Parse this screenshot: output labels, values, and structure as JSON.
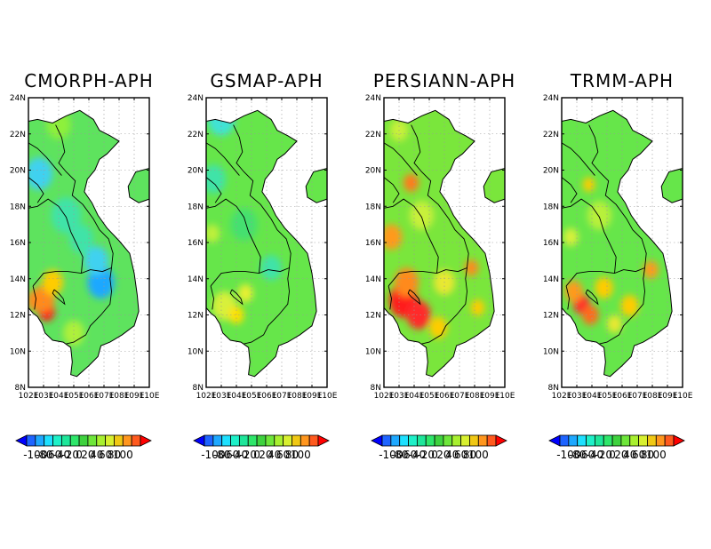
{
  "figure": {
    "panels": [
      {
        "title": "CMORPH-APH",
        "base_color": "#5ee35e",
        "patches": [
          {
            "lon": 103.2,
            "lat": 12.2,
            "r": 0.55,
            "color": "#ff1a1a"
          },
          {
            "lon": 103.0,
            "lat": 12.9,
            "r": 0.75,
            "color": "#ff8a1a"
          },
          {
            "lon": 103.6,
            "lat": 13.8,
            "r": 0.7,
            "color": "#ffcc00"
          },
          {
            "lon": 102.5,
            "lat": 12.8,
            "r": 0.6,
            "color": "#ff8a1a"
          },
          {
            "lon": 106.8,
            "lat": 13.8,
            "r": 0.9,
            "color": "#1ea8ff"
          },
          {
            "lon": 106.5,
            "lat": 15.0,
            "r": 0.8,
            "color": "#3fd1f0"
          },
          {
            "lon": 102.7,
            "lat": 19.8,
            "r": 0.9,
            "color": "#3fd1f0"
          },
          {
            "lon": 104.5,
            "lat": 17.5,
            "r": 1.0,
            "color": "#3fe3a8"
          },
          {
            "lon": 105.5,
            "lat": 16.2,
            "r": 0.8,
            "color": "#3fe3a8"
          },
          {
            "lon": 105.0,
            "lat": 11.0,
            "r": 0.7,
            "color": "#aef03a"
          },
          {
            "lon": 104.0,
            "lat": 22.5,
            "r": 0.8,
            "color": "#8ef03a"
          }
        ]
      },
      {
        "title": "GSMAP-APH",
        "base_color": "#66e64a",
        "patches": [
          {
            "lon": 103.0,
            "lat": 22.8,
            "r": 0.9,
            "color": "#3fe3d5"
          },
          {
            "lon": 102.5,
            "lat": 19.5,
            "r": 0.8,
            "color": "#3fe3a8"
          },
          {
            "lon": 103.2,
            "lat": 12.5,
            "r": 0.8,
            "color": "#d8f03a"
          },
          {
            "lon": 104.0,
            "lat": 12.0,
            "r": 0.5,
            "color": "#ffe000"
          },
          {
            "lon": 104.6,
            "lat": 13.2,
            "r": 0.5,
            "color": "#e8f030"
          },
          {
            "lon": 106.3,
            "lat": 14.6,
            "r": 0.7,
            "color": "#3fe3a8"
          },
          {
            "lon": 104.5,
            "lat": 17.0,
            "r": 0.9,
            "color": "#45e070"
          },
          {
            "lon": 102.4,
            "lat": 16.5,
            "r": 0.5,
            "color": "#c0f03a"
          }
        ]
      },
      {
        "title": "PERSIANN-APH",
        "base_color": "#7ae63c",
        "patches": [
          {
            "lon": 103.3,
            "lat": 12.8,
            "r": 0.95,
            "color": "#ff1a1a"
          },
          {
            "lon": 104.3,
            "lat": 12.0,
            "r": 0.8,
            "color": "#ff2a2a"
          },
          {
            "lon": 103.5,
            "lat": 13.8,
            "r": 0.8,
            "color": "#ff8a1a"
          },
          {
            "lon": 102.5,
            "lat": 16.3,
            "r": 0.7,
            "color": "#ff9a1a"
          },
          {
            "lon": 103.8,
            "lat": 19.3,
            "r": 0.5,
            "color": "#ff7a1a"
          },
          {
            "lon": 107.8,
            "lat": 14.6,
            "r": 0.45,
            "color": "#ff8a1a"
          },
          {
            "lon": 108.2,
            "lat": 12.4,
            "r": 0.45,
            "color": "#ffcc00"
          },
          {
            "lon": 105.6,
            "lat": 11.3,
            "r": 0.6,
            "color": "#ffcc00"
          },
          {
            "lon": 104.5,
            "lat": 17.5,
            "r": 0.8,
            "color": "#c8f03a"
          },
          {
            "lon": 106.0,
            "lat": 13.8,
            "r": 0.7,
            "color": "#e8e830"
          },
          {
            "lon": 103.0,
            "lat": 22.2,
            "r": 0.6,
            "color": "#c8f03a"
          }
        ]
      },
      {
        "title": "TRMM-APH",
        "base_color": "#66e64a",
        "patches": [
          {
            "lon": 103.3,
            "lat": 12.6,
            "r": 0.55,
            "color": "#ff2a2a"
          },
          {
            "lon": 102.8,
            "lat": 13.3,
            "r": 0.6,
            "color": "#ff9a1a"
          },
          {
            "lon": 103.9,
            "lat": 12.0,
            "r": 0.55,
            "color": "#ff6a1a"
          },
          {
            "lon": 104.8,
            "lat": 13.5,
            "r": 0.6,
            "color": "#ffcc00"
          },
          {
            "lon": 107.9,
            "lat": 14.5,
            "r": 0.5,
            "color": "#ff9a1a"
          },
          {
            "lon": 106.5,
            "lat": 12.5,
            "r": 0.6,
            "color": "#ffcc00"
          },
          {
            "lon": 103.8,
            "lat": 19.2,
            "r": 0.4,
            "color": "#ffcc00"
          },
          {
            "lon": 104.5,
            "lat": 17.5,
            "r": 0.8,
            "color": "#b8f03a"
          },
          {
            "lon": 102.6,
            "lat": 16.3,
            "r": 0.5,
            "color": "#d8f03a"
          },
          {
            "lon": 105.5,
            "lat": 11.5,
            "r": 0.5,
            "color": "#e8e830"
          }
        ]
      }
    ],
    "lat_ticks": [
      "8N",
      "10N",
      "12N",
      "14N",
      "16N",
      "18N",
      "20N",
      "22N",
      "24N"
    ],
    "lon_ticks": [
      "102E",
      "103E",
      "104E",
      "105E",
      "106E",
      "107E",
      "108E",
      "109E",
      "110E"
    ],
    "lat_range": [
      8,
      24
    ],
    "lon_range": [
      102,
      110
    ],
    "colorbar": {
      "colors": [
        "#0000ff",
        "#1e64ff",
        "#1ea8ff",
        "#1ee0ff",
        "#1ef0c8",
        "#1ee69a",
        "#2ee66a",
        "#3ed23e",
        "#6ee63a",
        "#a8f030",
        "#d8f030",
        "#f0c814",
        "#ff961e",
        "#ff5a1e",
        "#ff0000"
      ],
      "labels": [
        "-100",
        "-80",
        "-60",
        "-40",
        "-20",
        "0",
        "20",
        "40",
        "60",
        "80",
        "100"
      ]
    }
  }
}
